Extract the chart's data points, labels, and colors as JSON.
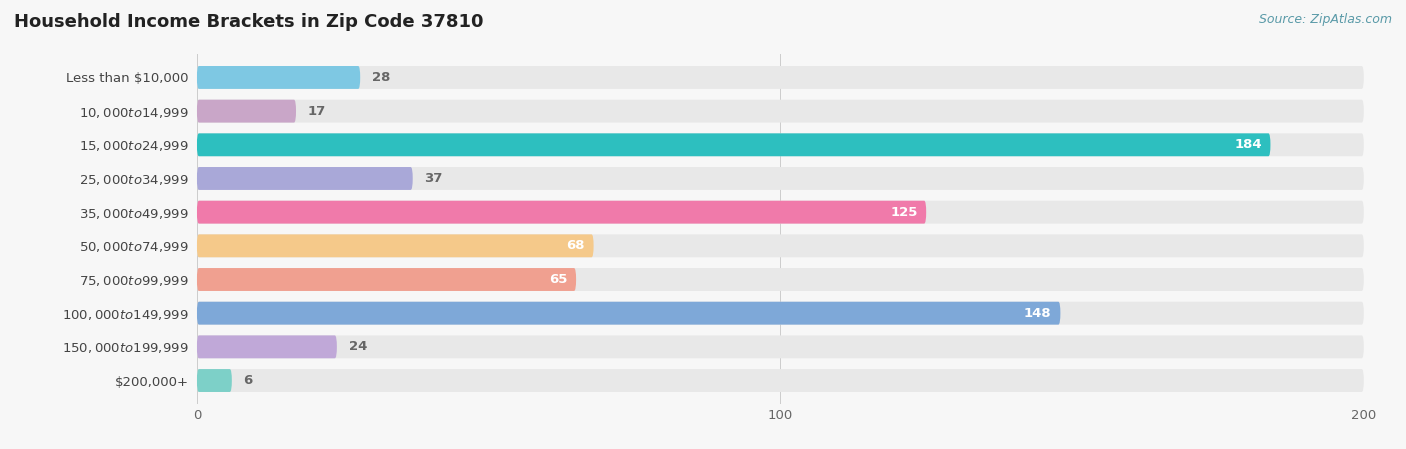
{
  "title": "Household Income Brackets in Zip Code 37810",
  "source": "Source: ZipAtlas.com",
  "categories": [
    "Less than $10,000",
    "$10,000 to $14,999",
    "$15,000 to $24,999",
    "$25,000 to $34,999",
    "$35,000 to $49,999",
    "$50,000 to $74,999",
    "$75,000 to $99,999",
    "$100,000 to $149,999",
    "$150,000 to $199,999",
    "$200,000+"
  ],
  "values": [
    28,
    17,
    184,
    37,
    125,
    68,
    65,
    148,
    24,
    6
  ],
  "bar_colors": [
    "#7ec8e3",
    "#c9a6c8",
    "#2dbfbf",
    "#a9a8d8",
    "#f07aaa",
    "#f5c98a",
    "#f0a090",
    "#7ea8d8",
    "#c0a8d8",
    "#7dd0c8"
  ],
  "background_color": "#f7f7f7",
  "bar_bg_color": "#e8e8e8",
  "xlim": [
    0,
    200
  ],
  "bar_height": 0.68,
  "label_fontsize": 9.5,
  "title_fontsize": 13,
  "value_label_color_inside": "#ffffff",
  "value_label_color_outside": "#666666",
  "inside_threshold": 50
}
